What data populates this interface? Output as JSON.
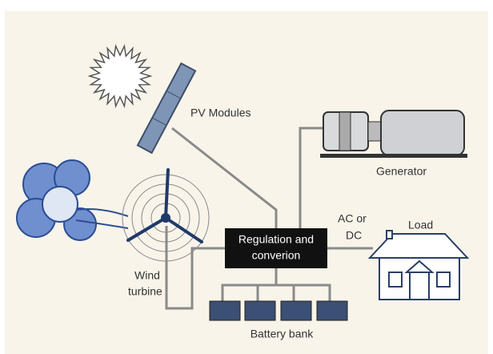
{
  "nodes": [
    {
      "label_lines": [
        "PV Modules"
      ]
    },
    {
      "label_lines": [
        "Generator"
      ]
    },
    {
      "label_lines": [
        "AC or",
        "DC"
      ]
    },
    {
      "label_lines": [
        "Load"
      ]
    },
    {
      "label_lines": [
        "Regulation and",
        "converion"
      ]
    },
    {
      "label_lines": [
        "Wind",
        "turbine"
      ]
    },
    {
      "label_lines": [
        "Battery bank"
      ]
    }
  ]
}
